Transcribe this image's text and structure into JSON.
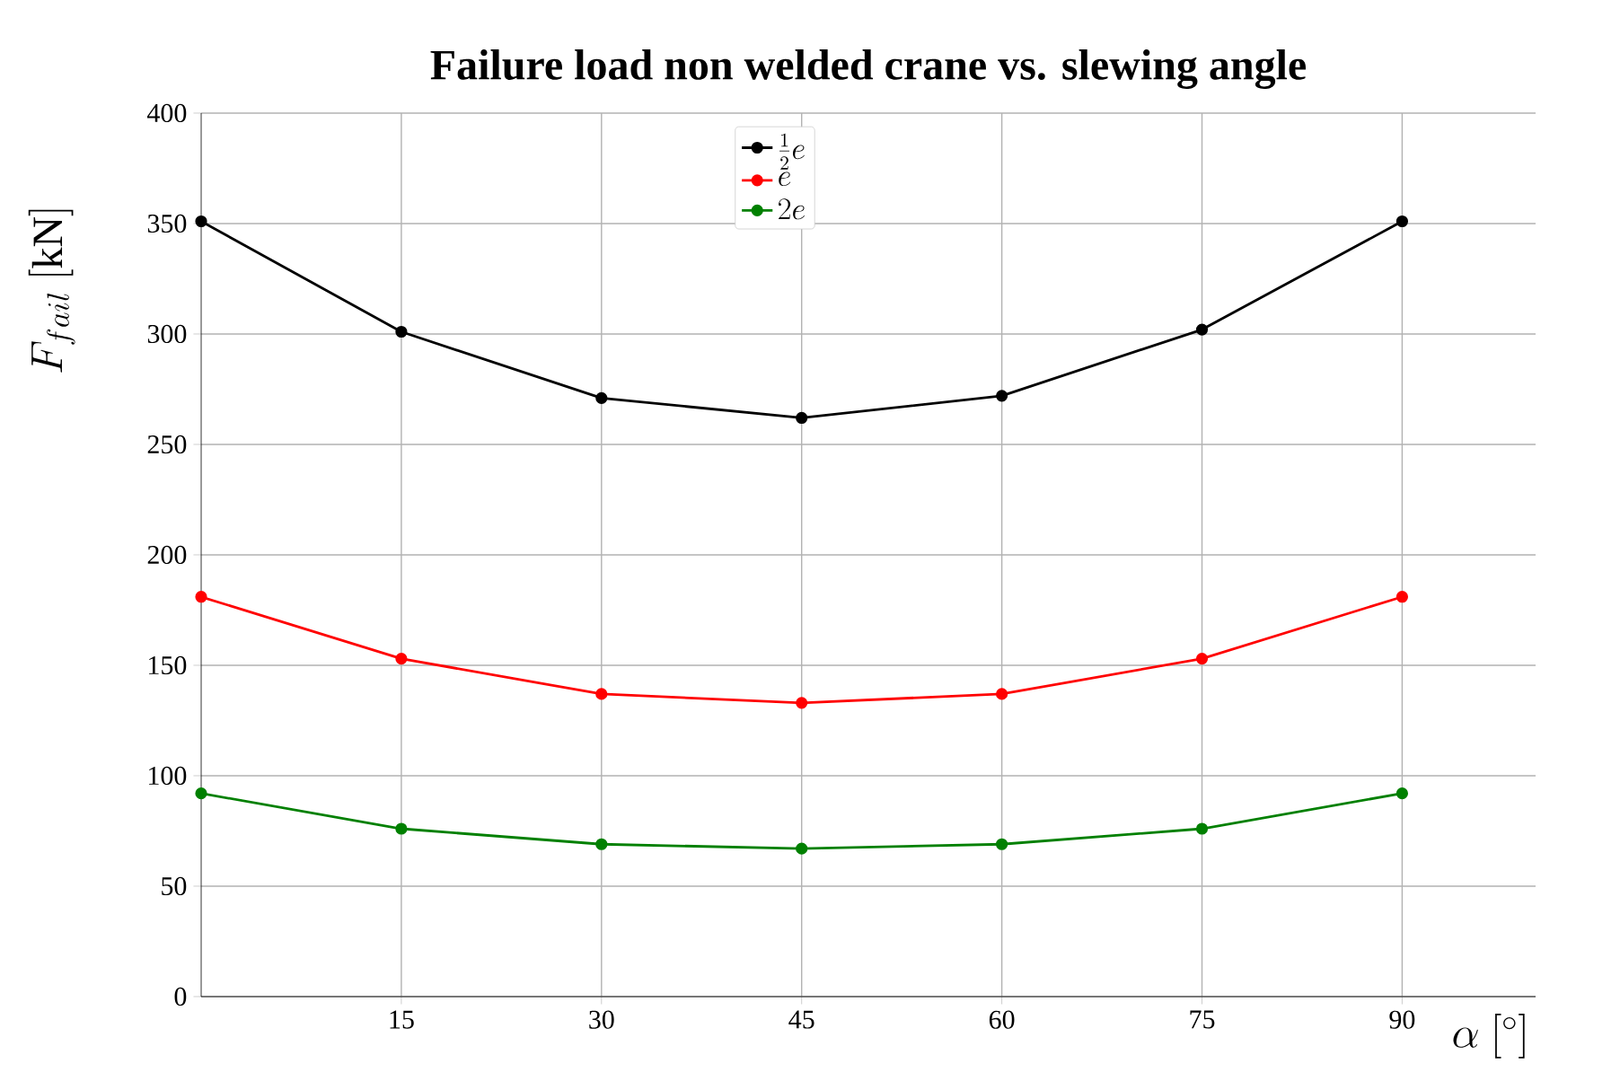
{
  "chart_data": {
    "type": "line",
    "title": "Failure load non welded crane vs. slewing angle",
    "xlabel": "\\alpha\\ [^\\circ]",
    "ylabel": "F_{fail}\\ [\\mathrm{kN}]",
    "x": [
      0,
      15,
      30,
      45,
      60,
      75,
      90
    ],
    "series": [
      {
        "name": "\\frac{1}{2}e",
        "color": "#000000",
        "values": [
          351,
          301,
          271,
          262,
          272,
          302,
          351
        ]
      },
      {
        "name": "e",
        "color": "#ff0000",
        "values": [
          181,
          153,
          137,
          133,
          137,
          153,
          181
        ]
      },
      {
        "name": "2e",
        "color": "#008000",
        "values": [
          92,
          76,
          69,
          67,
          69,
          76,
          92
        ]
      }
    ],
    "xlim": [
      0,
      100
    ],
    "ylim": [
      0,
      400
    ],
    "xticks": [
      15,
      30,
      45,
      60,
      75,
      90
    ],
    "yticks": [
      0,
      50,
      100,
      150,
      200,
      250,
      300,
      350,
      400
    ],
    "grid": true,
    "legend": "top",
    "marker": "circle",
    "line_style": "solid"
  }
}
